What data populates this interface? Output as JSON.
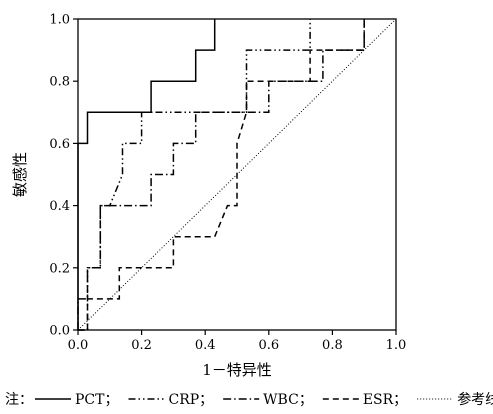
{
  "chart_data": {
    "type": "line",
    "xlabel": "1－特异性",
    "ylabel": "敏感性",
    "xlim": [
      0,
      1
    ],
    "ylim": [
      0,
      1
    ],
    "x_ticks": [
      "0.0",
      "0.2",
      "0.4",
      "0.6",
      "0.8",
      "1.0"
    ],
    "y_ticks": [
      "0.0",
      "0.2",
      "0.4",
      "0.6",
      "0.8",
      "1.0"
    ],
    "grid": false,
    "legend_position": "bottom",
    "legend_prefix": "注：",
    "series": [
      {
        "name": "PCT",
        "dash": "solid",
        "legend_label": "PCT；",
        "points": [
          [
            0,
            0
          ],
          [
            0,
            0.6
          ],
          [
            0.03,
            0.6
          ],
          [
            0.03,
            0.7
          ],
          [
            0.23,
            0.7
          ],
          [
            0.23,
            0.8
          ],
          [
            0.37,
            0.8
          ],
          [
            0.37,
            0.9
          ],
          [
            0.43,
            0.9
          ],
          [
            0.43,
            1.0
          ]
        ]
      },
      {
        "name": "CRP",
        "dash": "dashdotdot",
        "legend_label": "CRP；",
        "points": [
          [
            0,
            0
          ],
          [
            0.03,
            0
          ],
          [
            0.03,
            0.2
          ],
          [
            0.07,
            0.2
          ],
          [
            0.07,
            0.4
          ],
          [
            0.1,
            0.4
          ],
          [
            0.14,
            0.5
          ],
          [
            0.14,
            0.6
          ],
          [
            0.2,
            0.6
          ],
          [
            0.2,
            0.7
          ],
          [
            0.37,
            0.7
          ],
          [
            0.53,
            0.7
          ],
          [
            0.53,
            0.9
          ],
          [
            0.73,
            0.9
          ],
          [
            0.73,
            1.0
          ]
        ]
      },
      {
        "name": "WBC",
        "dash": "dashdot",
        "legend_label": "WBC；",
        "points": [
          [
            0,
            0
          ],
          [
            0,
            0.1
          ],
          [
            0.03,
            0.1
          ],
          [
            0.03,
            0.2
          ],
          [
            0.07,
            0.2
          ],
          [
            0.07,
            0.4
          ],
          [
            0.23,
            0.4
          ],
          [
            0.23,
            0.5
          ],
          [
            0.3,
            0.5
          ],
          [
            0.3,
            0.6
          ],
          [
            0.37,
            0.6
          ],
          [
            0.37,
            0.7
          ],
          [
            0.6,
            0.7
          ],
          [
            0.6,
            0.8
          ],
          [
            0.77,
            0.8
          ],
          [
            0.77,
            0.9
          ],
          [
            0.9,
            0.9
          ],
          [
            0.9,
            1.0
          ]
        ]
      },
      {
        "name": "ESR",
        "dash": "dash",
        "legend_label": "ESR；",
        "points": [
          [
            0,
            0
          ],
          [
            0.03,
            0
          ],
          [
            0.03,
            0.1
          ],
          [
            0.13,
            0.1
          ],
          [
            0.13,
            0.2
          ],
          [
            0.3,
            0.2
          ],
          [
            0.3,
            0.3
          ],
          [
            0.43,
            0.3
          ],
          [
            0.47,
            0.4
          ],
          [
            0.5,
            0.4
          ],
          [
            0.5,
            0.6
          ],
          [
            0.53,
            0.7
          ],
          [
            0.53,
            0.8
          ],
          [
            0.73,
            0.8
          ],
          [
            0.73,
            0.9
          ],
          [
            0.9,
            0.9
          ],
          [
            0.9,
            1.0
          ]
        ]
      },
      {
        "name": "参考线",
        "dash": "dotted",
        "legend_label": "参考线",
        "points": [
          [
            0,
            0
          ],
          [
            1,
            1
          ]
        ]
      }
    ]
  }
}
